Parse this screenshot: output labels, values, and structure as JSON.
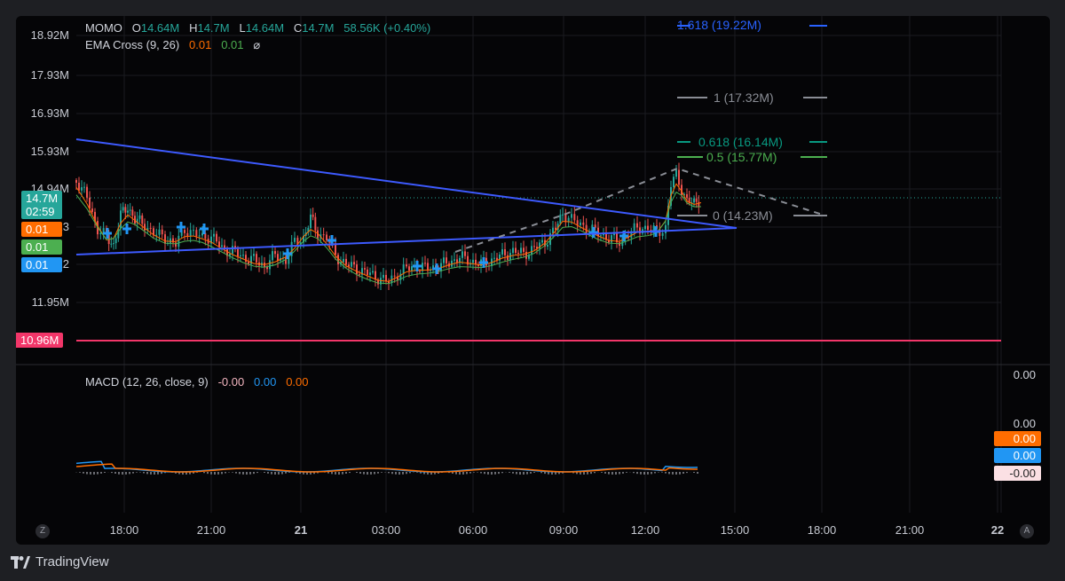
{
  "legend": {
    "symbol": "MOMO",
    "o_label": "O",
    "o_value": "14.64M",
    "h_label": "H",
    "h_value": "14.7M",
    "l_label": "L",
    "l_value": "14.64M",
    "c_label": "C",
    "c_value": "14.7M",
    "change": "58.56K (+0.40%)",
    "ema_name": "EMA Cross (9, 26)",
    "ema_val1": "0.01",
    "ema_val2": "0.01",
    "ema_icon": "⌀"
  },
  "macd_legend": {
    "name": "MACD (12, 26, close, 9)",
    "v1": "-0.00",
    "v2": "0.00",
    "v3": "0.00"
  },
  "price_axis": [
    "18.92M",
    "17.93M",
    "16.93M",
    "15.93M",
    "14.94M",
    "13",
    "12",
    "11.95M"
  ],
  "price_tags": {
    "last_price": "14.7M",
    "countdown": "02:59",
    "ema_orange": "0.01",
    "ema_green": "0.01",
    "ema_blue": "0.01",
    "horizontal_level": "10.96M"
  },
  "macd_axis": {
    "top": "0.00",
    "mid": "0.00",
    "tag_orange": "0.00",
    "tag_blue": "0.00",
    "tag_pink": "-0.00"
  },
  "time_axis": [
    "18:00",
    "21:00",
    "21",
    "03:00",
    "06:00",
    "09:00",
    "12:00",
    "15:00",
    "18:00",
    "21:00",
    "22"
  ],
  "fib_levels": [
    {
      "label": "1.618 (19.22M)",
      "color": "#2962ff"
    },
    {
      "label": "1 (17.32M)",
      "color": "#8a8d95"
    },
    {
      "label": "0.618 (16.14M)",
      "color": "#089981"
    },
    {
      "label": "0.5 (15.77M)",
      "color": "#4caf50"
    },
    {
      "label": "0 (14.23M)",
      "color": "#8a8d95"
    }
  ],
  "corner_left": "Z",
  "corner_right": "A",
  "brand": "TradingView",
  "colors": {
    "up": "#26a69a",
    "down": "#ef5350",
    "trendline": "#3d5afe",
    "horizontal": "#f23669",
    "ema_fast": "#ff6d00",
    "ema_slow": "#4caf50"
  }
}
